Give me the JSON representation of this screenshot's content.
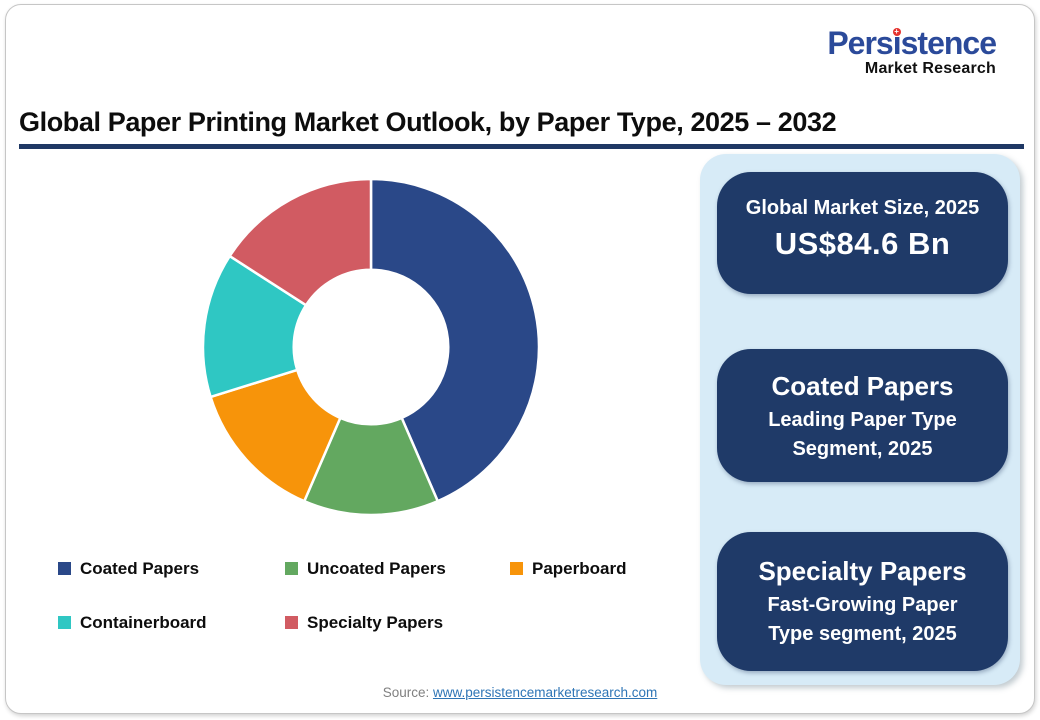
{
  "logo": {
    "part1": "Pers",
    "dotless_i": "ı",
    "part2": "stence",
    "subtitle": "Market Research",
    "brand_blue": "#2b4a9a",
    "dot_red": "#e5332e"
  },
  "header": {
    "title": "Global Paper Printing Market Outlook, by Paper Type, 2025 – 2032",
    "rule_color": "#1f3864"
  },
  "chart_data": {
    "type": "pie",
    "variant": "donut",
    "title": "Global Paper Printing Market Outlook, by Paper Type, 2025 – 2032",
    "segments": [
      {
        "label": "Coated Papers",
        "value": 43.5,
        "color": "#2a4888"
      },
      {
        "label": "Uncoated Papers",
        "value": 13.0,
        "color": "#63a860"
      },
      {
        "label": "Paperboard",
        "value": 13.7,
        "color": "#f7940a"
      },
      {
        "label": "Containerboard",
        "value": 13.9,
        "color": "#2fc7c3"
      },
      {
        "label": "Specialty Papers",
        "value": 15.9,
        "color": "#d15b62"
      }
    ],
    "start_angle_deg": 0,
    "direction": "clockwise",
    "inner_radius_ratio": 0.46,
    "slice_gap_color": "#ffffff",
    "legend_position": "bottom"
  },
  "panel": {
    "background": "#d7ebf7",
    "box_color": "#1f3a68",
    "text_color": "#ffffff",
    "boxes": [
      {
        "heading": "Global Market Size, 2025",
        "value": "US$84.6 Bn"
      },
      {
        "heading": "Coated Papers",
        "subtitle": "Leading Paper Type Segment, 2025"
      },
      {
        "heading": "Specialty Papers",
        "subtitle": "Fast-Growing Paper Type segment, 2025"
      }
    ]
  },
  "footer": {
    "source_label": "Source: ",
    "source_link": "www.persistencemarketresearch.com"
  }
}
